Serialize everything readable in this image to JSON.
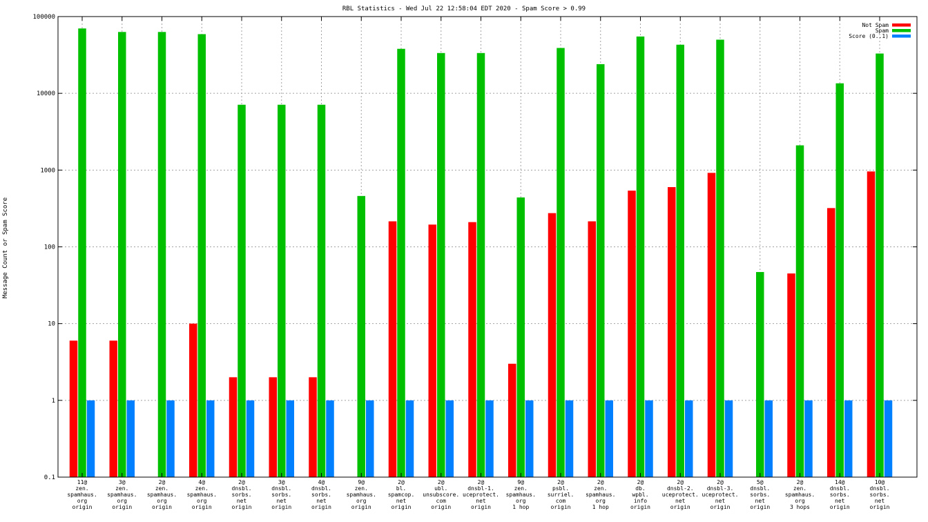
{
  "chart_data": {
    "type": "bar",
    "title": "RBL Statistics - Wed Jul 22 12:58:04 EDT 2020 - Spam Score > 0.99",
    "xlabel": "",
    "ylabel": "Message Count or Spam Score",
    "yscale": "log",
    "ylim": [
      0.1,
      100000
    ],
    "yticks": [
      "0.1",
      "1",
      "10",
      "100",
      "1000",
      "10000",
      "100000"
    ],
    "grid": true,
    "legend_position": "top-right",
    "categories": [
      [
        "11@",
        "zen.",
        "spamhaus.",
        "org",
        "origin"
      ],
      [
        "3@",
        "zen.",
        "spamhaus.",
        "org",
        "origin"
      ],
      [
        "2@",
        "zen.",
        "spamhaus.",
        "org",
        "origin"
      ],
      [
        "4@",
        "zen.",
        "spamhaus.",
        "org",
        "origin"
      ],
      [
        "2@",
        "dnsbl.",
        "sorbs.",
        "net",
        "origin"
      ],
      [
        "3@",
        "dnsbl.",
        "sorbs.",
        "net",
        "origin"
      ],
      [
        "4@",
        "dnsbl.",
        "sorbs.",
        "net",
        "origin"
      ],
      [
        "9@",
        "zen.",
        "spamhaus.",
        "org",
        "origin"
      ],
      [
        "2@",
        "bl.",
        "spamcop.",
        "net",
        "origin"
      ],
      [
        "2@",
        "ubl.",
        "unsubscore.",
        "com",
        "origin"
      ],
      [
        "2@",
        "dnsbl-1.",
        "uceprotect.",
        "net",
        "origin"
      ],
      [
        "9@",
        "zen.",
        "spamhaus.",
        "org",
        "1 hop"
      ],
      [
        "2@",
        "psbl.",
        "surriel.",
        "com",
        "origin"
      ],
      [
        "2@",
        "zen.",
        "spamhaus.",
        "org",
        "1 hop"
      ],
      [
        "2@",
        "db.",
        "wpbl.",
        "info",
        "origin"
      ],
      [
        "2@",
        "dnsbl-2.",
        "uceprotect.",
        "net",
        "origin"
      ],
      [
        "2@",
        "dnsbl-3.",
        "uceprotect.",
        "net",
        "origin"
      ],
      [
        "5@",
        "dnsbl.",
        "sorbs.",
        "net",
        "origin"
      ],
      [
        "2@",
        "zen.",
        "spamhaus.",
        "org",
        "3 hops"
      ],
      [
        "14@",
        "dnsbl.",
        "sorbs.",
        "net",
        "origin"
      ],
      [
        "10@",
        "dnsbl.",
        "sorbs.",
        "net",
        "origin"
      ]
    ],
    "series": [
      {
        "name": "Not Spam",
        "color": "#ff0000",
        "values": [
          6,
          6,
          null,
          10,
          2,
          2,
          2,
          null,
          215,
          195,
          210,
          3,
          275,
          215,
          540,
          600,
          920,
          null,
          45,
          320,
          960
        ]
      },
      {
        "name": "Spam",
        "color": "#00c000",
        "values": [
          70000,
          63000,
          63000,
          59000,
          7100,
          7100,
          7100,
          460,
          38000,
          33500,
          33500,
          440,
          39000,
          24000,
          55000,
          43000,
          50000,
          47,
          2100,
          13500,
          33000
        ]
      },
      {
        "name": "Score (0..1)",
        "color": "#0080ff",
        "values": [
          1,
          1,
          1,
          1,
          1,
          1,
          1,
          1,
          1,
          1,
          1,
          1,
          1,
          1,
          1,
          1,
          1,
          1,
          1,
          1,
          1
        ]
      }
    ]
  }
}
